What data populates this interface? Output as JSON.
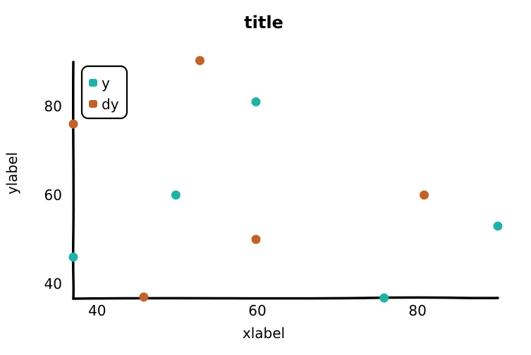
{
  "chart_data": {
    "type": "scatter",
    "title": "title",
    "xlabel": "xlabel",
    "ylabel": "ylabel",
    "xlim": [
      37.2,
      90.2
    ],
    "ylim": [
      36.8,
      90.3
    ],
    "xticks": [
      40,
      60,
      80
    ],
    "yticks": [
      40,
      60,
      80
    ],
    "grid": false,
    "legend_position": "top-left",
    "series": [
      {
        "name": "y",
        "color": "#20b2aa",
        "points": [
          {
            "x": 37.2,
            "y": 46
          },
          {
            "x": 50,
            "y": 60
          },
          {
            "x": 60,
            "y": 81
          },
          {
            "x": 76,
            "y": 36.8
          },
          {
            "x": 90.2,
            "y": 53
          }
        ]
      },
      {
        "name": "dy",
        "color": "#c1622a",
        "points": [
          {
            "x": 37.2,
            "y": 76
          },
          {
            "x": 46,
            "y": 37
          },
          {
            "x": 53,
            "y": 90.3
          },
          {
            "x": 60,
            "y": 50
          },
          {
            "x": 81,
            "y": 60
          }
        ]
      }
    ]
  }
}
